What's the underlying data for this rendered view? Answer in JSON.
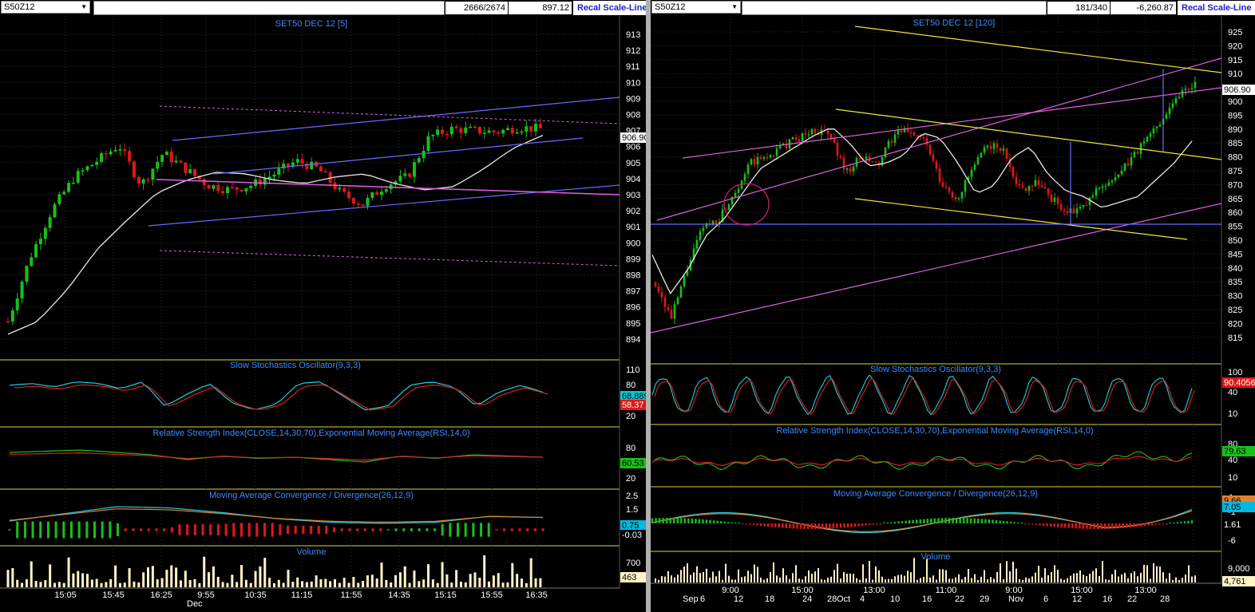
{
  "left": {
    "symbol": "S50Z12",
    "count": "2666/2674",
    "value": "897.12",
    "button": "Recal Scale-Line",
    "main_title": "SET50 DEC 12   [5]",
    "price_ticks": [
      "913",
      "912",
      "911",
      "910",
      "909",
      "908",
      "907",
      "906",
      "905",
      "904",
      "903",
      "902",
      "901",
      "900",
      "899",
      "898",
      "897",
      "896",
      "895",
      "894"
    ],
    "last_price": "906.90",
    "stoch_title": "Slow Stochastics Oscillator(9,3,3)",
    "stoch_ticks": [
      "110",
      "80",
      "20"
    ],
    "stoch_vals": [
      "68.889",
      "58.37"
    ],
    "rsi_title": "Relative Strength Index(CLOSE,14,30,70),Exponential Moving Average(RSI,14,0)",
    "rsi_ticks": [
      "80",
      "40",
      "20"
    ],
    "rsi_val": "60.53",
    "macd_title": "Moving Average Convergence / Divergence(26,12,9)",
    "macd_ticks": [
      "2.5",
      "1.5",
      "0.5"
    ],
    "macd_vals": [
      "0.75",
      "-0.03"
    ],
    "vol_title": "Volume",
    "vol_ticks": [
      "700"
    ],
    "vol_val": "463",
    "time_labels": [
      "15:05",
      "15:45",
      "16:25",
      "9:55",
      "10:35",
      "11:15",
      "11:55",
      "14:35",
      "15:15",
      "15:55",
      "16:35"
    ],
    "date_label": "Dec"
  },
  "right": {
    "symbol": "S50Z12",
    "count": "181/340",
    "value": "-6,260.87",
    "button": "Recal Scale-Line",
    "main_title": "SET50 DEC 12   [120]",
    "price_ticks": [
      "925",
      "920",
      "915",
      "910",
      "905",
      "900",
      "895",
      "890",
      "885",
      "880",
      "875",
      "870",
      "865",
      "860",
      "855",
      "850",
      "845",
      "840",
      "835",
      "830",
      "825",
      "820",
      "815"
    ],
    "last_price": "906.90",
    "stoch_title": "Slow Stochastics Oscillator(9,3,3)",
    "stoch_ticks": [
      "100",
      "40",
      "10"
    ],
    "stoch_val": "90.4056",
    "rsi_title": "Relative Strength Index(CLOSE,14,30,70),Exponential Moving Average(RSI,14,0)",
    "rsi_ticks": [
      "80",
      "40",
      "10"
    ],
    "rsi_val": "79.63",
    "macd_title": "Moving Average Convergence / Divergence(26,12,9)",
    "macd_ticks": [
      "4",
      "-1",
      "-6"
    ],
    "macd_vals": [
      "9.66",
      "7.05",
      "1.61"
    ],
    "vol_title": "Volume",
    "vol_ticks": [
      "9,000"
    ],
    "vol_val": "4,761",
    "time_labels": [
      "9:00",
      "15:00",
      "13:00",
      "11:00",
      "9:00",
      "15:00",
      "13:00"
    ],
    "date_labels": [
      "Sep",
      "6",
      "12",
      "18",
      "24",
      "28",
      "Oct",
      "4",
      "10",
      "16",
      "22",
      "29",
      "Nov",
      "6",
      "12",
      "16",
      "22",
      "28"
    ]
  },
  "colors": {
    "background": "#000000",
    "grid": "#2a2a2a",
    "separator": "#d8d840",
    "title_blue": "#3a8cff",
    "candle_up": "#18c018",
    "candle_down": "#e01818",
    "ma_white": "#e8e8e8",
    "trend_blue": "#6a6aff",
    "trend_magenta": "#e060e0",
    "trend_yellow": "#e8e840",
    "stoch_cyan": "#20d0e0",
    "stoch_red": "#e02020",
    "rsi_green": "#20c020",
    "volume": "#fff4c8",
    "axis_text": "#ffffff"
  }
}
